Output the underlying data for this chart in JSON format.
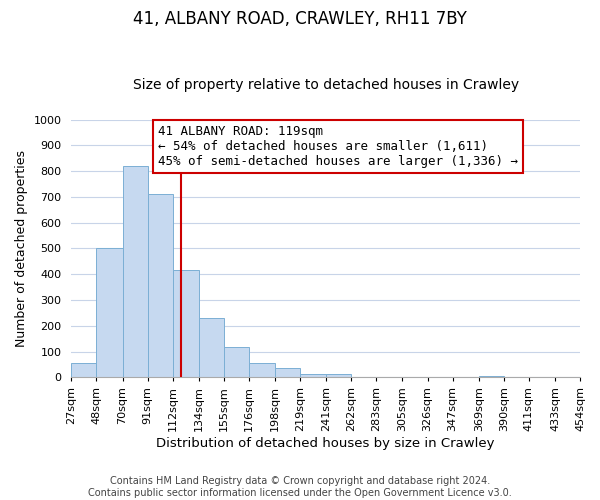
{
  "title": "41, ALBANY ROAD, CRAWLEY, RH11 7BY",
  "subtitle": "Size of property relative to detached houses in Crawley",
  "xlabel": "Distribution of detached houses by size in Crawley",
  "ylabel": "Number of detached properties",
  "bin_edges": [
    27,
    48,
    70,
    91,
    112,
    134,
    155,
    176,
    198,
    219,
    241,
    262,
    283,
    305,
    326,
    347,
    369,
    390,
    411,
    433,
    454
  ],
  "bar_heights": [
    55,
    500,
    820,
    710,
    415,
    230,
    118,
    55,
    35,
    12,
    12,
    0,
    0,
    0,
    0,
    0,
    5,
    0,
    0,
    0
  ],
  "bar_color": "#c6d9f0",
  "bar_edgecolor": "#7bafd4",
  "vline_x": 119,
  "vline_color": "#cc0000",
  "ylim": [
    0,
    1000
  ],
  "annotation_line1": "41 ALBANY ROAD: 119sqm",
  "annotation_line2": "← 54% of detached houses are smaller (1,611)",
  "annotation_line3": "45% of semi-detached houses are larger (1,336) →",
  "annotation_box_edgecolor": "#cc0000",
  "annotation_box_facecolor": "#ffffff",
  "annotation_fontsize": 9,
  "title_fontsize": 12,
  "subtitle_fontsize": 10,
  "xlabel_fontsize": 9.5,
  "ylabel_fontsize": 9,
  "tick_fontsize": 8,
  "footer_line1": "Contains HM Land Registry data © Crown copyright and database right 2024.",
  "footer_line2": "Contains public sector information licensed under the Open Government Licence v3.0.",
  "footer_fontsize": 7,
  "background_color": "#ffffff",
  "grid_color": "#c8d4e8"
}
